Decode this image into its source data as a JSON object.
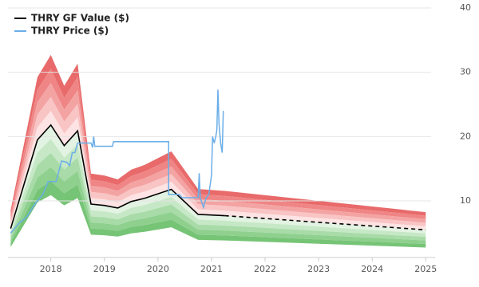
{
  "chart_data": {
    "type": "line",
    "xlim": [
      2017.2,
      2025.1
    ],
    "xticks": [
      2018,
      2019,
      2020,
      2021,
      2022,
      2023,
      2024,
      2025
    ],
    "ylim": [
      1.2,
      40
    ],
    "yticks": [
      10,
      20,
      30,
      40
    ],
    "grid": true,
    "legend": "top-left",
    "series": [
      {
        "name": "THRY GF Value ($)",
        "color": "#000000",
        "x": [
          2017.25,
          2017.75,
          2018.0,
          2018.25,
          2018.5,
          2018.75,
          2019.0,
          2019.25,
          2019.5,
          2019.75,
          2020.25,
          2020.75,
          2021.25,
          2025.0
        ],
        "values": [
          5.7,
          19.5,
          21.8,
          18.6,
          20.9,
          9.5,
          9.3,
          8.9,
          9.9,
          10.4,
          11.8,
          7.9,
          7.7,
          5.5
        ]
      },
      {
        "name": "THRY Price ($)",
        "color": "#6aaee8",
        "x": [
          2017.25,
          2017.4,
          2017.55,
          2017.7,
          2017.85,
          2017.95,
          2018.1,
          2018.2,
          2018.3,
          2018.35,
          2018.4,
          2018.45,
          2018.5,
          2018.75,
          2018.78,
          2018.8,
          2018.82,
          2019.15,
          2019.17,
          2020.2,
          2020.2,
          2020.4,
          2020.45,
          2020.75,
          2020.77,
          2020.79,
          2020.85,
          2020.9,
          2020.95,
          2021.0,
          2021.02,
          2021.05,
          2021.08,
          2021.1,
          2021.12,
          2021.14,
          2021.17,
          2021.2,
          2021.22
        ],
        "values": [
          5.0,
          6.5,
          7.5,
          9.5,
          11.0,
          13.0,
          13.0,
          16.2,
          16.0,
          15.5,
          17.5,
          17.5,
          19.0,
          19.0,
          18.3,
          20.0,
          18.5,
          18.5,
          19.2,
          19.2,
          11.0,
          11.0,
          10.5,
          10.5,
          14.3,
          10.5,
          9.0,
          10.5,
          11.0,
          14.0,
          20.0,
          19.0,
          20.0,
          21.0,
          27.3,
          22.0,
          19.0,
          17.5,
          24.0
        ]
      }
    ]
  }
}
